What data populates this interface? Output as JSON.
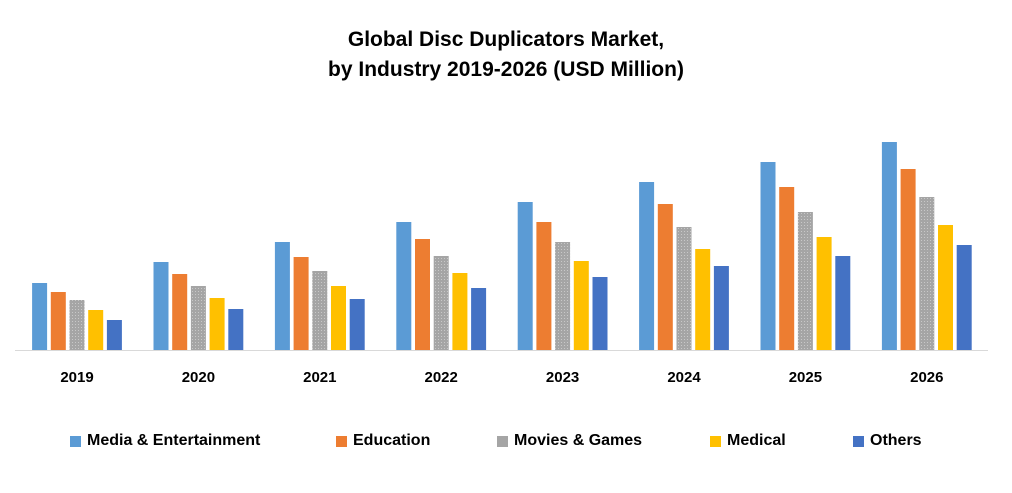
{
  "chart_data": {
    "type": "bar",
    "title_line1": "Global Disc Duplicators Market,",
    "title_line2": "by Industry 2019-2026 (USD Million)",
    "xlabel": "",
    "ylabel": "",
    "ylim": [
      0,
      230
    ],
    "grid": false,
    "legend_position": "bottom",
    "categories": [
      "2019",
      "2020",
      "2021",
      "2022",
      "2023",
      "2024",
      "2025",
      "2026"
    ],
    "series": [
      {
        "name": "Media & Entertainment",
        "color": "#5B9BD5",
        "values": [
          67,
          88,
          108,
          128,
          148,
          168,
          188,
          208
        ]
      },
      {
        "name": "Education",
        "color": "#ED7D31",
        "values": [
          58,
          76,
          93,
          111,
          128,
          146,
          163,
          181
        ]
      },
      {
        "name": "Movies & Games",
        "color": "#A5A5A5",
        "values": [
          50,
          64,
          79,
          94,
          108,
          123,
          138,
          153
        ]
      },
      {
        "name": "Medical",
        "color": "#FFC000",
        "values": [
          40,
          52,
          64,
          77,
          89,
          101,
          113,
          125
        ]
      },
      {
        "name": "Others",
        "color": "#4472C4",
        "values": [
          30,
          41,
          51,
          62,
          73,
          84,
          94,
          105
        ]
      }
    ]
  }
}
